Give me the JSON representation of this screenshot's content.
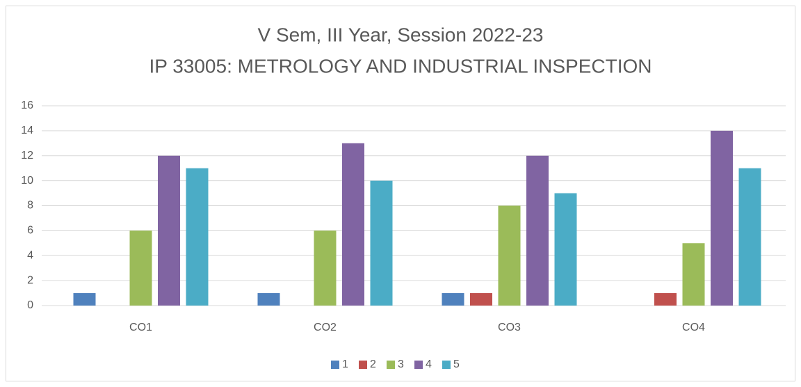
{
  "chart_data": {
    "type": "bar",
    "title": [
      "V Sem, III Year, Session 2022-23",
      "IP 33005: METROLOGY AND INDUSTRIAL INSPECTION"
    ],
    "categories": [
      "CO1",
      "CO2",
      "CO3",
      "CO4"
    ],
    "series": [
      {
        "name": "1",
        "color": "#4f81bd",
        "values": [
          1,
          1,
          1,
          0
        ]
      },
      {
        "name": "2",
        "color": "#c0504d",
        "values": [
          0,
          0,
          1,
          1
        ]
      },
      {
        "name": "3",
        "color": "#9bbb59",
        "values": [
          6,
          6,
          8,
          5
        ]
      },
      {
        "name": "4",
        "color": "#8064a2",
        "values": [
          12,
          13,
          12,
          14
        ]
      },
      {
        "name": "5",
        "color": "#4bacc6",
        "values": [
          11,
          10,
          9,
          11
        ]
      }
    ],
    "ylim": [
      0,
      16
    ],
    "yticks": [
      0,
      2,
      4,
      6,
      8,
      10,
      12,
      14,
      16
    ],
    "grid": true,
    "legend": "bottom"
  }
}
